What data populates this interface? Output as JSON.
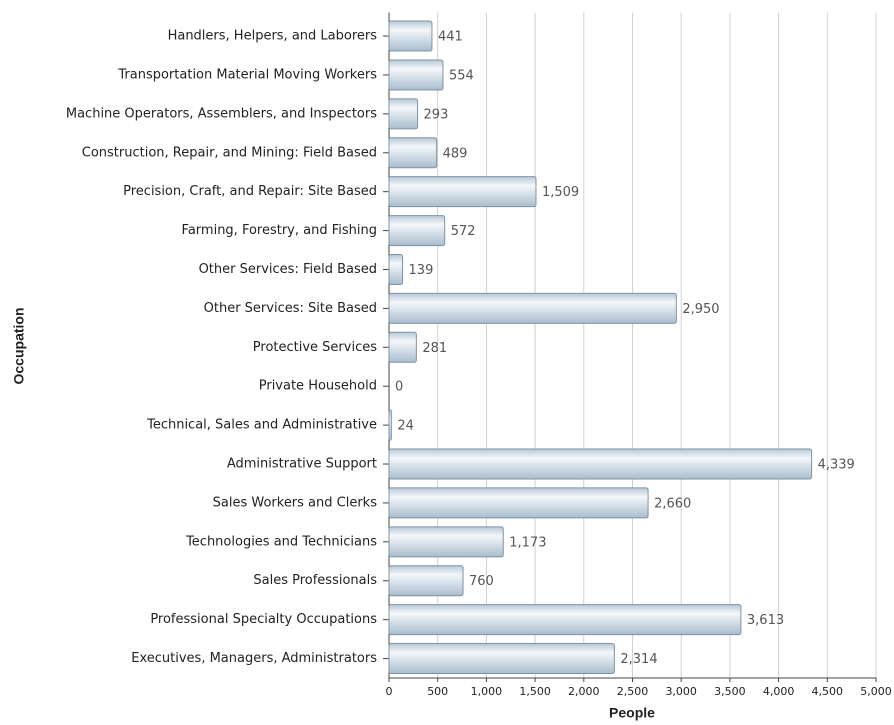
{
  "chart_data": {
    "type": "bar",
    "orientation": "horizontal",
    "xlabel": "People",
    "ylabel": "Occupation",
    "categories": [
      "Handlers, Helpers, and Laborers",
      "Transportation Material Moving Workers",
      "Machine Operators, Assemblers, and Inspectors",
      "Construction, Repair, and Mining: Field Based",
      "Precision, Craft, and Repair: Site Based",
      "Farming, Forestry, and Fishing",
      "Other Services: Field Based",
      "Other Services: Site Based",
      "Protective Services",
      "Private Household",
      "Technical, Sales and Administrative",
      "Administrative Support",
      "Sales Workers and Clerks",
      "Technologies and Technicians",
      "Sales Professionals",
      "Professional Specialty Occupations",
      "Executives, Managers, Administrators"
    ],
    "values": [
      441,
      554,
      293,
      489,
      1509,
      572,
      139,
      2950,
      281,
      0,
      24,
      4339,
      2660,
      1173,
      760,
      3613,
      2314
    ],
    "value_labels": [
      "441",
      "554",
      "293",
      "489",
      "1,509",
      "572",
      "139",
      "2,950",
      "281",
      "0",
      "24",
      "4,339",
      "2,660",
      "1,173",
      "760",
      "3,613",
      "2,314"
    ],
    "color": "#c9d6e0",
    "xlim": [
      0,
      5000
    ],
    "xticks": [
      0,
      500,
      {
        "value": 1000,
        "label": "1,000"
      },
      {
        "value": 1500,
        "label": "1,500"
      },
      {
        "value": 2000,
        "label": "2,000"
      },
      {
        "value": 2500,
        "label": "2,500"
      },
      {
        "value": 3000,
        "label": "3,000"
      },
      {
        "value": 3500,
        "label": "3,500"
      },
      {
        "value": 4000,
        "label": "4,000"
      },
      {
        "value": 4500,
        "label": "4,500"
      },
      {
        "value": 5000,
        "label": "5,000"
      }
    ],
    "grid": true
  }
}
